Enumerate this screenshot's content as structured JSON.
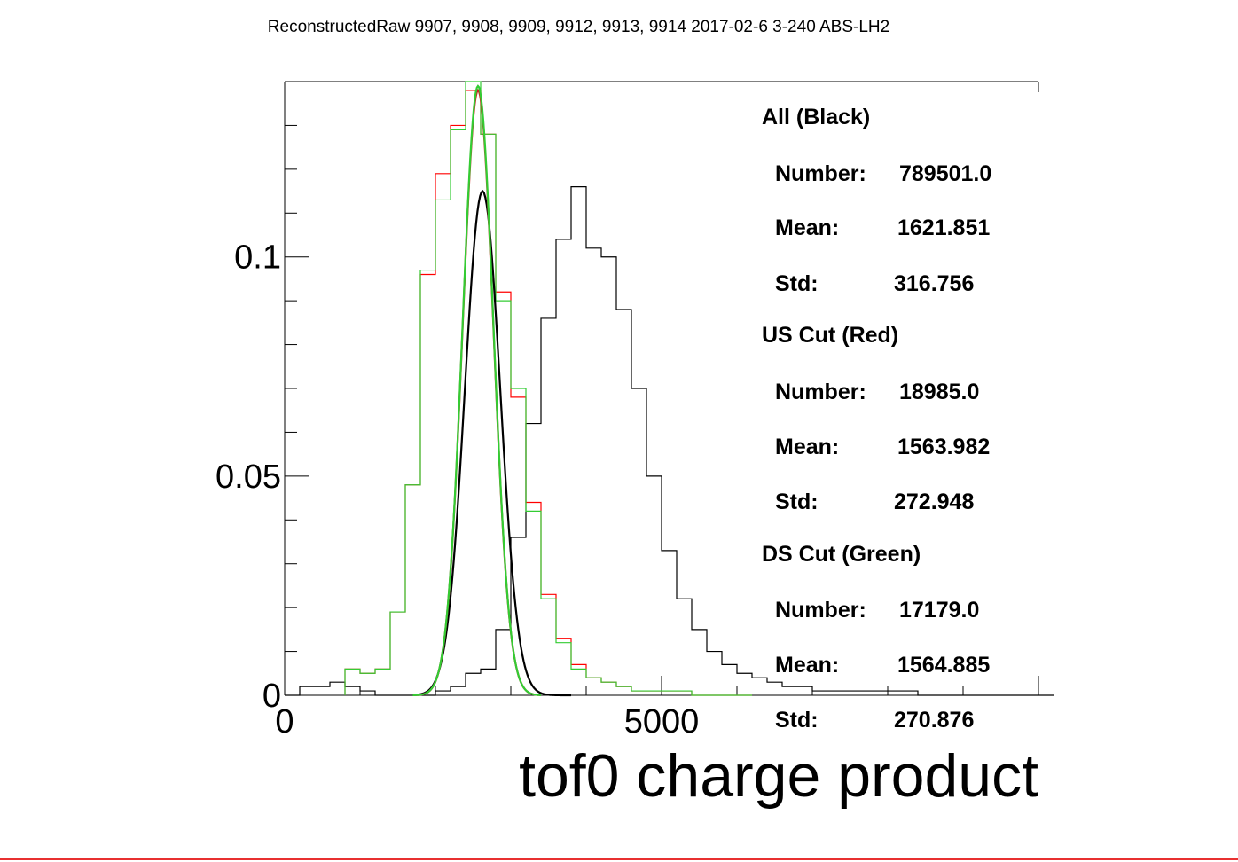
{
  "title": "ReconstructedRaw 9907, 9908, 9909, 9912, 9913, 9914 2017-02-6 3-240 ABS-LH2",
  "chart_data": {
    "type": "histogram",
    "xlabel": "tof0 charge product",
    "xlim": [
      0,
      10000
    ],
    "ylim": [
      0,
      0.14
    ],
    "x_ticks": [
      0,
      5000
    ],
    "x_tick_labels": [
      "0",
      "5000"
    ],
    "y_ticks": [
      0,
      0.05,
      0.1
    ],
    "y_tick_labels": [
      "0",
      "0.05",
      "0.1"
    ],
    "bin_width": 200,
    "series": [
      {
        "name": "All (Black)",
        "color": "#000000",
        "bin_start": 0,
        "values": [
          0.0,
          0.002,
          0.002,
          0.003,
          0.002,
          0.001,
          0.0,
          0.0,
          0.0,
          0.0,
          0.001,
          0.002,
          0.005,
          0.006,
          0.015,
          0.036,
          0.062,
          0.086,
          0.104,
          0.116,
          0.102,
          0.1,
          0.088,
          0.07,
          0.05,
          0.033,
          0.022,
          0.015,
          0.01,
          0.007,
          0.005,
          0.004,
          0.003,
          0.002,
          0.002,
          0.001,
          0.001,
          0.001,
          0.001,
          0.001,
          0.001,
          0.001,
          0.0,
          0.0,
          0.0,
          0.0,
          0.0,
          0.0,
          0.0,
          0.0,
          0.0
        ]
      },
      {
        "name": "US Cut (Red)",
        "color": "#ff0000",
        "bin_start": 800,
        "values": [
          0.006,
          0.005,
          0.006,
          0.019,
          0.048,
          0.096,
          0.119,
          0.13,
          0.138,
          0.128,
          0.092,
          0.068,
          0.044,
          0.023,
          0.013,
          0.007,
          0.004,
          0.003,
          0.002,
          0.001,
          0.001,
          0.001,
          0.001,
          0.0,
          0.0,
          0.0,
          0.0
        ]
      },
      {
        "name": "DS Cut (Green)",
        "color": "#33cc33",
        "bin_start": 800,
        "values": [
          0.006,
          0.005,
          0.006,
          0.019,
          0.048,
          0.097,
          0.113,
          0.129,
          0.14,
          0.128,
          0.09,
          0.07,
          0.042,
          0.022,
          0.012,
          0.006,
          0.004,
          0.003,
          0.002,
          0.001,
          0.001,
          0.001,
          0.001,
          0.0,
          0.0,
          0.0,
          0.0
        ]
      }
    ],
    "fits": [
      {
        "name": "fit-black",
        "color": "#000000",
        "mean": 1625,
        "sigma": 235,
        "amplitude": 0.115,
        "range": [
          1700,
          3800
        ]
      },
      {
        "name": "fit-red",
        "color": "#cc2222",
        "mean": 1565,
        "sigma": 205,
        "amplitude": 0.138,
        "range": [
          1700,
          3400
        ]
      },
      {
        "name": "fit-green",
        "color": "#33cc33",
        "mean": 1565,
        "sigma": 205,
        "amplitude": 0.139,
        "range": [
          1700,
          3400
        ]
      }
    ]
  },
  "stats": {
    "all": {
      "header": "All (Black)",
      "number_label": "Number:",
      "number": "789501.0",
      "mean_label": "Mean:",
      "mean": "1621.851",
      "std_label": "Std:",
      "std": "316.756"
    },
    "us": {
      "header": "US Cut (Red)",
      "number_label": "Number:",
      "number": "18985.0",
      "mean_label": "Mean:",
      "mean": "1563.982",
      "std_label": "Std:",
      "std": "272.948"
    },
    "ds": {
      "header": "DS Cut (Green)",
      "number_label": "Number:",
      "number": "17179.0",
      "mean_label": "Mean:",
      "mean": "1564.885",
      "std_label": "Std:",
      "std": "270.876"
    }
  }
}
